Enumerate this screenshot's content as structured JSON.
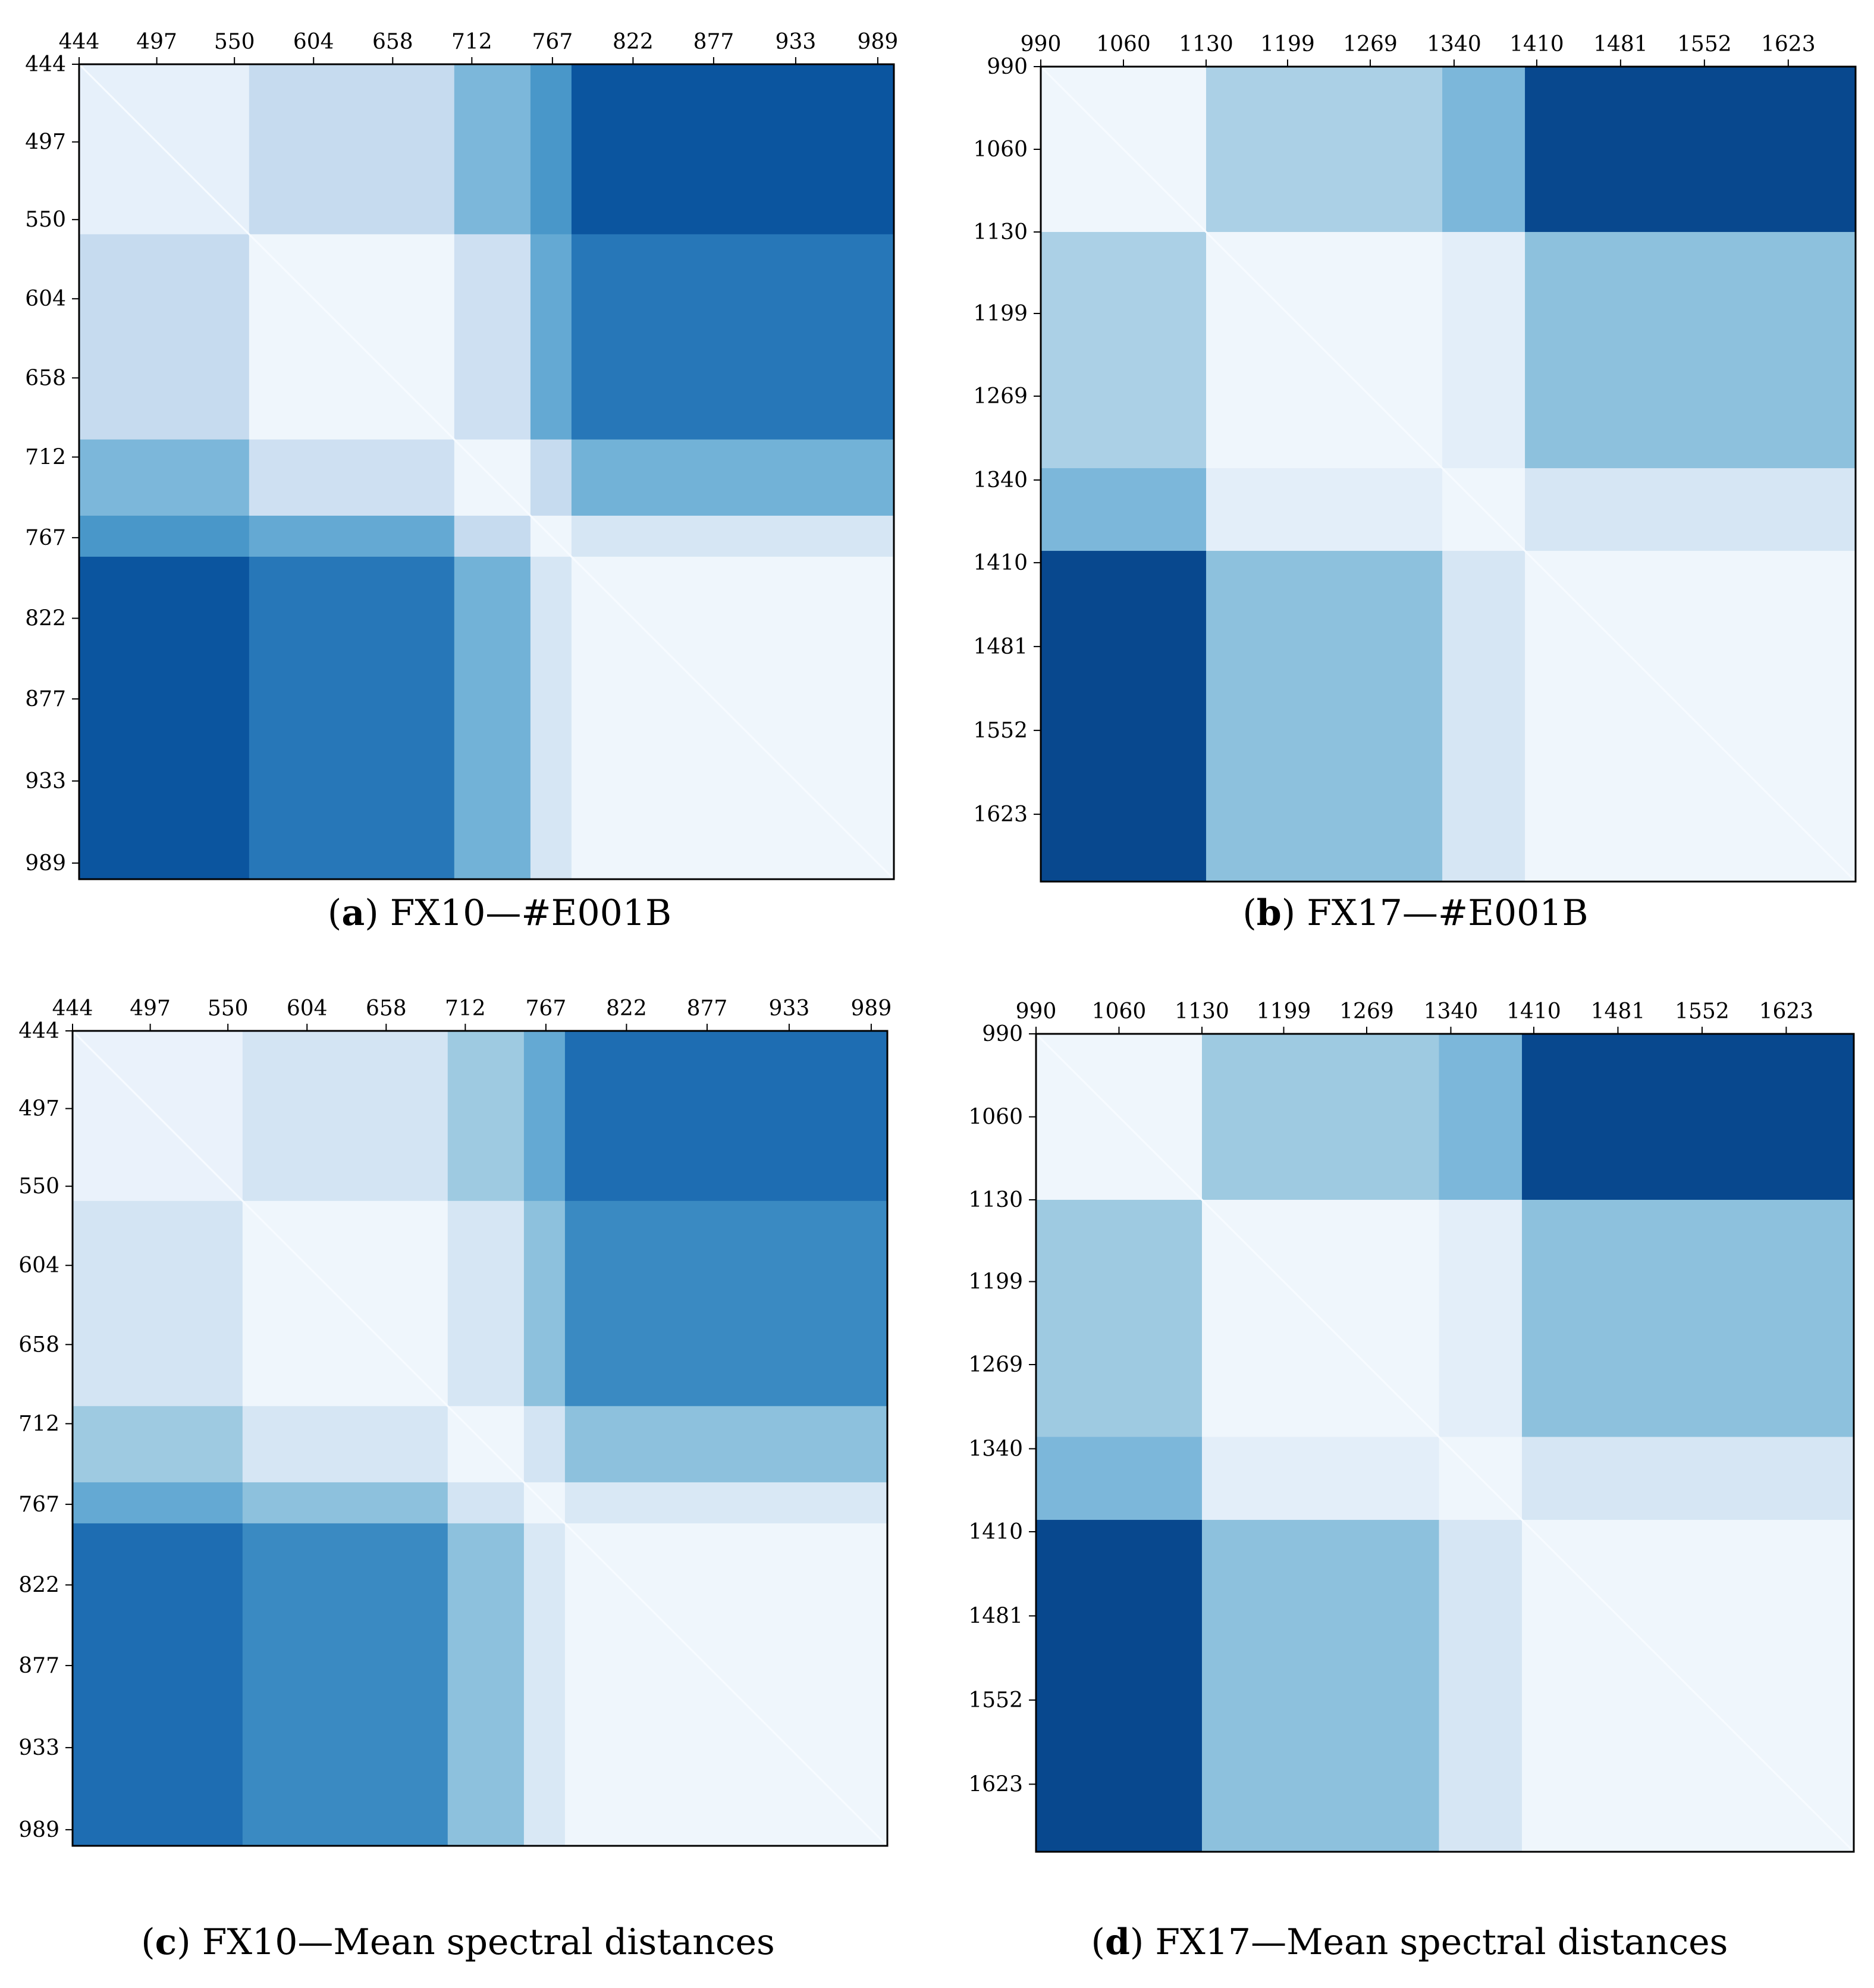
{
  "colors": {
    "colormap": "Blues",
    "low": "#f7fbff",
    "high": "#08306b",
    "axis": "#000000"
  },
  "captions": [
    {
      "letter": "a",
      "text": "FX10—#E001B"
    },
    {
      "letter": "b",
      "text": "FX17—#E001B"
    },
    {
      "letter": "c",
      "text": "FX10—Mean spectral distances"
    },
    {
      "letter": "d",
      "text": "FX17—Mean spectral distances"
    }
  ],
  "chart_data": [
    {
      "type": "heatmap",
      "panel": "a",
      "colormap": "Blues",
      "title": "",
      "xlabel": "",
      "ylabel": "",
      "x_tick_position": "top",
      "xlim": [
        444,
        1000
      ],
      "ylim": [
        444,
        1000
      ],
      "x_ticks": [
        "444",
        "497",
        "550",
        "604",
        "658",
        "712",
        "767",
        "822",
        "877",
        "933",
        "989"
      ],
      "y_ticks": [
        "444",
        "497",
        "550",
        "604",
        "658",
        "712",
        "767",
        "822",
        "877",
        "933",
        "989"
      ],
      "diagonal": 0,
      "zones": [
        {
          "from": 444,
          "to": 560
        },
        {
          "from": 560,
          "to": 700
        },
        {
          "from": 700,
          "to": 752
        },
        {
          "from": 752,
          "to": 780
        },
        {
          "from": 780,
          "to": 1000
        }
      ],
      "matrix": [
        [
          0.1,
          0.3,
          0.55,
          0.7,
          0.92
        ],
        [
          0.3,
          0.05,
          0.25,
          0.62,
          0.82
        ],
        [
          0.55,
          0.25,
          0.05,
          0.3,
          0.58
        ],
        [
          0.7,
          0.62,
          0.3,
          0.05,
          0.2
        ],
        [
          0.92,
          0.82,
          0.58,
          0.2,
          0.05
        ]
      ]
    },
    {
      "type": "heatmap",
      "panel": "b",
      "colormap": "Blues",
      "title": "",
      "xlabel": "",
      "ylabel": "",
      "x_tick_position": "top",
      "xlim": [
        990,
        1680
      ],
      "ylim": [
        990,
        1680
      ],
      "x_ticks": [
        "990",
        "1060",
        "1130",
        "1199",
        "1269",
        "1340",
        "1410",
        "1481",
        "1552",
        "1623"
      ],
      "y_ticks": [
        "990",
        "1060",
        "1130",
        "1199",
        "1269",
        "1340",
        "1410",
        "1481",
        "1552",
        "1623"
      ],
      "diagonal": 0,
      "zones": [
        {
          "from": 990,
          "to": 1130
        },
        {
          "from": 1130,
          "to": 1330
        },
        {
          "from": 1330,
          "to": 1400
        },
        {
          "from": 1400,
          "to": 1680
        }
      ],
      "matrix": [
        [
          0.05,
          0.4,
          0.55,
          0.95
        ],
        [
          0.4,
          0.05,
          0.12,
          0.5
        ],
        [
          0.55,
          0.12,
          0.05,
          0.2
        ],
        [
          0.95,
          0.5,
          0.2,
          0.05
        ]
      ]
    },
    {
      "type": "heatmap",
      "panel": "c",
      "colormap": "Blues",
      "title": "",
      "xlabel": "",
      "ylabel": "",
      "x_tick_position": "top",
      "xlim": [
        444,
        1000
      ],
      "ylim": [
        444,
        1000
      ],
      "x_ticks": [
        "444",
        "497",
        "550",
        "604",
        "658",
        "712",
        "767",
        "822",
        "877",
        "933",
        "989"
      ],
      "y_ticks": [
        "444",
        "497",
        "550",
        "604",
        "658",
        "712",
        "767",
        "822",
        "877",
        "933",
        "989"
      ],
      "diagonal": 0,
      "zones": [
        {
          "from": 444,
          "to": 560
        },
        {
          "from": 560,
          "to": 700
        },
        {
          "from": 700,
          "to": 752
        },
        {
          "from": 752,
          "to": 780
        },
        {
          "from": 780,
          "to": 1000
        }
      ],
      "matrix": [
        [
          0.08,
          0.22,
          0.45,
          0.62,
          0.85
        ],
        [
          0.22,
          0.05,
          0.2,
          0.5,
          0.75
        ],
        [
          0.45,
          0.2,
          0.05,
          0.22,
          0.5
        ],
        [
          0.62,
          0.5,
          0.22,
          0.05,
          0.18
        ],
        [
          0.85,
          0.75,
          0.5,
          0.18,
          0.05
        ]
      ]
    },
    {
      "type": "heatmap",
      "panel": "d",
      "colormap": "Blues",
      "title": "",
      "xlabel": "",
      "ylabel": "",
      "x_tick_position": "top",
      "xlim": [
        990,
        1680
      ],
      "ylim": [
        990,
        1680
      ],
      "x_ticks": [
        "990",
        "1060",
        "1130",
        "1199",
        "1269",
        "1340",
        "1410",
        "1481",
        "1552",
        "1623"
      ],
      "y_ticks": [
        "990",
        "1060",
        "1130",
        "1199",
        "1269",
        "1340",
        "1410",
        "1481",
        "1552",
        "1623"
      ],
      "diagonal": 0,
      "zones": [
        {
          "from": 990,
          "to": 1130
        },
        {
          "from": 1130,
          "to": 1330
        },
        {
          "from": 1330,
          "to": 1400
        },
        {
          "from": 1400,
          "to": 1680
        }
      ],
      "matrix": [
        [
          0.05,
          0.45,
          0.55,
          0.95
        ],
        [
          0.45,
          0.05,
          0.12,
          0.5
        ],
        [
          0.55,
          0.12,
          0.05,
          0.2
        ],
        [
          0.95,
          0.5,
          0.2,
          0.05
        ]
      ]
    }
  ]
}
